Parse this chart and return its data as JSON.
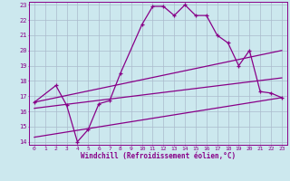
{
  "xlabel": "Windchill (Refroidissement éolien,°C)",
  "background_color": "#cce8ee",
  "grid_color": "#aabbcc",
  "line_color": "#880088",
  "xlim": [
    -0.5,
    23.5
  ],
  "ylim": [
    13.8,
    23.2
  ],
  "xticks": [
    0,
    1,
    2,
    3,
    4,
    5,
    6,
    7,
    8,
    9,
    10,
    11,
    12,
    13,
    14,
    15,
    16,
    17,
    18,
    19,
    20,
    21,
    22,
    23
  ],
  "yticks": [
    14,
    15,
    16,
    17,
    18,
    19,
    20,
    21,
    22,
    23
  ],
  "line1_x": [
    0,
    2,
    3,
    4,
    5,
    6,
    7,
    8,
    10,
    11,
    12,
    13,
    14,
    15,
    16,
    17,
    18,
    19,
    20,
    21,
    22,
    23
  ],
  "line1_y": [
    16.6,
    17.7,
    16.4,
    14.0,
    14.8,
    16.5,
    16.7,
    18.5,
    21.7,
    22.9,
    22.9,
    22.3,
    23.0,
    22.3,
    22.3,
    21.0,
    20.5,
    19.0,
    20.0,
    17.3,
    17.2,
    16.9
  ],
  "line2_x": [
    0,
    23
  ],
  "line2_y": [
    16.6,
    20.0
  ],
  "line3_x": [
    0,
    23
  ],
  "line3_y": [
    16.2,
    18.2
  ],
  "line4_x": [
    0,
    23
  ],
  "line4_y": [
    14.3,
    16.9
  ]
}
